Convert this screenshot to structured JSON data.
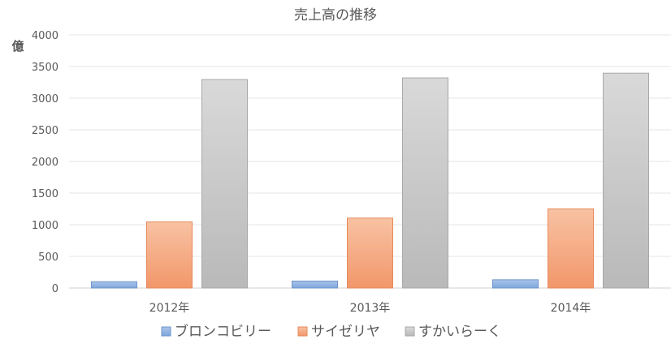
{
  "chart_data": {
    "type": "bar",
    "title": "売上高の推移",
    "ylabel": "億",
    "xlabel": "",
    "categories": [
      "2012年",
      "2013年",
      "2014年"
    ],
    "ylim": [
      0,
      4000
    ],
    "yticks": [
      0,
      500,
      1000,
      1500,
      2000,
      2500,
      3000,
      3500,
      4000
    ],
    "grid": true,
    "legend_position": "bottom",
    "series": [
      {
        "name": "ブロンコビリー",
        "values": [
          100,
          110,
          130
        ],
        "color_top": "#a9c4ea",
        "color_bottom": "#7fa6dc",
        "stroke": "#6f95c9"
      },
      {
        "name": "サイゼリヤ",
        "values": [
          1045,
          1105,
          1250
        ],
        "color_top": "#f8c2a3",
        "color_bottom": "#f2976a",
        "stroke": "#e58a5c"
      },
      {
        "name": "すかいらーく",
        "values": [
          3295,
          3320,
          3395
        ],
        "color_top": "#d9d9d9",
        "color_bottom": "#b9b9b9",
        "stroke": "#a8a8a8"
      }
    ]
  }
}
